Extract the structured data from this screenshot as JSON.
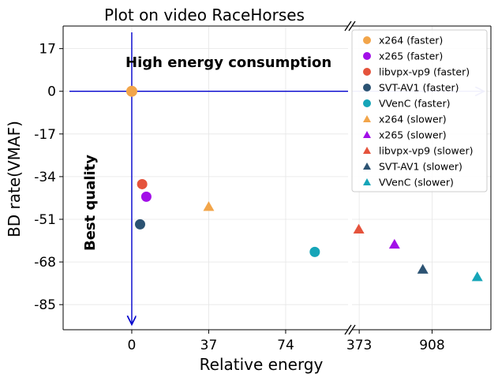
{
  "chart_data": {
    "type": "scatter",
    "title": "Plot on video RaceHorses",
    "xlabel": "Relative energy",
    "ylabel": "BD rate(VMAF)",
    "broken_x_axis": true,
    "left_panel": {
      "xlim": [
        -33,
        104
      ],
      "xticks": [
        0,
        37,
        74
      ],
      "tick_labels": [
        "0",
        "37",
        "74"
      ]
    },
    "right_panel": {
      "xlim": [
        320,
        1340
      ],
      "xticks": [
        373,
        908
      ],
      "tick_labels": [
        "373",
        "908"
      ]
    },
    "ylim": [
      -95,
      26
    ],
    "yticks": [
      17,
      0,
      -17,
      -34,
      -51,
      -68,
      -85
    ],
    "ytick_labels": [
      "17",
      "0",
      "-17",
      "-34",
      "-51",
      "-68",
      "-85"
    ],
    "grid": true,
    "legend_position": "top-right",
    "annotations": {
      "top": "High energy consumption",
      "left": "Best quality"
    },
    "reference_point": {
      "x": 0,
      "y": 0,
      "color": "#f2a54a"
    },
    "series": [
      {
        "name": "x264 (faster)",
        "marker": "circle",
        "color": "#f2a54a",
        "points": []
      },
      {
        "name": "x265 (faster)",
        "marker": "circle",
        "color": "#a20fe8",
        "points": [
          {
            "x": 7,
            "y": -42
          }
        ]
      },
      {
        "name": "libvpx-vp9 (faster)",
        "marker": "circle",
        "color": "#e5533c",
        "points": [
          {
            "x": 5,
            "y": -37
          }
        ]
      },
      {
        "name": "SVT-AV1 (faster)",
        "marker": "circle",
        "color": "#2c5373",
        "points": [
          {
            "x": 4,
            "y": -53
          }
        ]
      },
      {
        "name": "VVenC (faster)",
        "marker": "circle",
        "color": "#16a5b8",
        "points": [
          {
            "x": 88,
            "y": -64
          }
        ]
      },
      {
        "name": "x264 (slower)",
        "marker": "triangle",
        "color": "#f2a54a",
        "points": [
          {
            "x": 37,
            "y": -46
          }
        ]
      },
      {
        "name": "x265 (slower)",
        "marker": "triangle",
        "color": "#a20fe8",
        "points": [
          {
            "x": 632,
            "y": -61
          }
        ]
      },
      {
        "name": "libvpx-vp9 (slower)",
        "marker": "triangle",
        "color": "#e5533c",
        "points": [
          {
            "x": 370,
            "y": -55
          }
        ]
      },
      {
        "name": "SVT-AV1 (slower)",
        "marker": "triangle",
        "color": "#2c5373",
        "points": [
          {
            "x": 840,
            "y": -71
          }
        ]
      },
      {
        "name": "VVenC (slower)",
        "marker": "triangle",
        "color": "#16a5b8",
        "points": [
          {
            "x": 1240,
            "y": -74
          }
        ]
      }
    ],
    "colors": {
      "axis_arrow": "#0000cc",
      "grid": "#e6e6e6"
    }
  }
}
